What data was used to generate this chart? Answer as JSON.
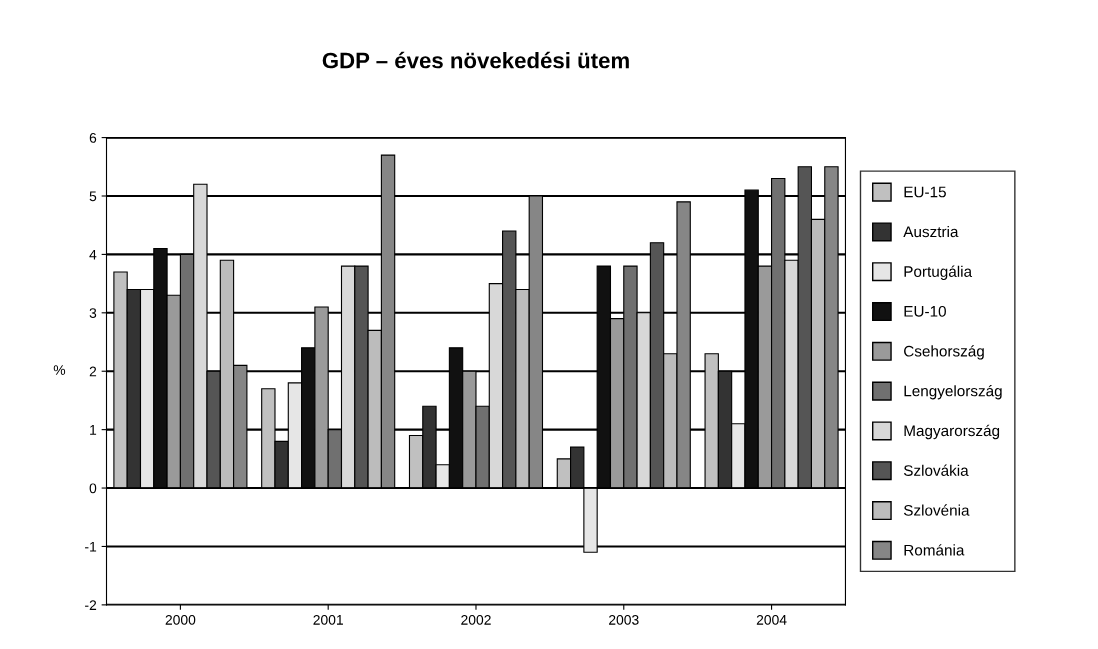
{
  "chart_data": {
    "type": "bar",
    "title": "GDP – éves növekedési ütem",
    "ylabel": "%",
    "categories": [
      "2000",
      "2001",
      "2002",
      "2003",
      "2004"
    ],
    "series": [
      {
        "name": "EU-15",
        "color": "#c0c0c0",
        "values": [
          3.7,
          1.7,
          0.9,
          0.5,
          2.3
        ]
      },
      {
        "name": "Ausztria",
        "color": "#333333",
        "values": [
          3.4,
          0.8,
          1.4,
          0.7,
          2.0
        ]
      },
      {
        "name": "Portugália",
        "color": "#e6e6e6",
        "values": [
          3.4,
          1.8,
          0.4,
          -1.1,
          1.1
        ]
      },
      {
        "name": "EU-10",
        "color": "#111111",
        "values": [
          4.1,
          2.4,
          2.4,
          3.8,
          5.1
        ]
      },
      {
        "name": "Csehország",
        "color": "#9a9a9a",
        "values": [
          3.3,
          3.1,
          2.0,
          2.9,
          3.8
        ]
      },
      {
        "name": "Lengyelország",
        "color": "#707070",
        "values": [
          4.0,
          1.0,
          1.4,
          3.8,
          5.3
        ]
      },
      {
        "name": "Magyarország",
        "color": "#d8d8d8",
        "values": [
          5.2,
          3.8,
          3.5,
          3.0,
          3.9
        ]
      },
      {
        "name": "Szlovákia",
        "color": "#555555",
        "values": [
          2.0,
          3.8,
          4.4,
          4.2,
          5.5
        ]
      },
      {
        "name": "Szlovénia",
        "color": "#bcbcbc",
        "values": [
          3.9,
          2.7,
          3.4,
          2.3,
          4.6
        ]
      },
      {
        "name": "Románia",
        "color": "#868686",
        "values": [
          2.1,
          5.7,
          5.0,
          4.9,
          5.5
        ]
      }
    ],
    "ylim": [
      -2,
      6
    ],
    "yticks": [
      -2,
      -1,
      0,
      1,
      2,
      3,
      4,
      5,
      6
    ],
    "grid": "y",
    "legend": "right"
  }
}
